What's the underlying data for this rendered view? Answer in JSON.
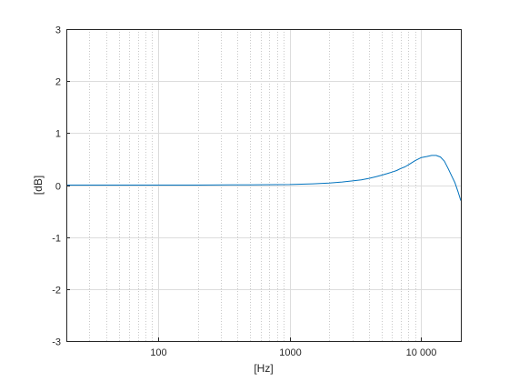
{
  "chart_data": {
    "type": "line",
    "title": "",
    "xlabel": "[Hz]",
    "ylabel": "[dB]",
    "xscale": "log",
    "xlim": [
      20,
      20000
    ],
    "ylim": [
      -3,
      3
    ],
    "grid": true,
    "legend": "none",
    "x_ticks": [
      {
        "value": 100,
        "label": "100"
      },
      {
        "value": 1000,
        "label": "1000"
      },
      {
        "value": 10000,
        "label": "10 000"
      }
    ],
    "y_ticks": [
      {
        "value": -3,
        "label": "-3"
      },
      {
        "value": -2,
        "label": "-2"
      },
      {
        "value": -1,
        "label": "-1"
      },
      {
        "value": 0,
        "label": "0"
      },
      {
        "value": 1,
        "label": "1"
      },
      {
        "value": 2,
        "label": "2"
      },
      {
        "value": 3,
        "label": "3"
      }
    ],
    "series": [
      {
        "color": "#0072bd",
        "x": [
          20,
          50,
          100,
          200,
          500,
          1000,
          1500,
          2000,
          2500,
          3000,
          3500,
          4000,
          4500,
          5000,
          5500,
          6000,
          6500,
          7000,
          7500,
          8000,
          9000,
          10000,
          11000,
          12000,
          13000,
          14000,
          15000,
          16000,
          17000,
          18000,
          19000,
          20000
        ],
        "y": [
          0.0,
          0.0,
          0.0,
          0.0,
          0.005,
          0.01,
          0.025,
          0.04,
          0.06,
          0.08,
          0.1,
          0.13,
          0.16,
          0.19,
          0.22,
          0.25,
          0.28,
          0.32,
          0.35,
          0.39,
          0.47,
          0.53,
          0.55,
          0.57,
          0.57,
          0.54,
          0.46,
          0.32,
          0.18,
          0.05,
          -0.12,
          -0.3
        ]
      }
    ]
  }
}
